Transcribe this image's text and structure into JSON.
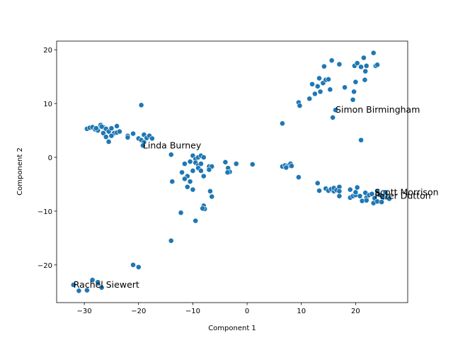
{
  "chart_data": {
    "type": "scatter",
    "xlabel": "Component 1",
    "ylabel": "Component 2",
    "color": "#1f77b4",
    "x": [
      -29.5,
      -29,
      -28.5,
      -28,
      -27.5,
      -27,
      -26.5,
      -26,
      -25.5,
      -25,
      -24.5,
      -24,
      -24,
      -23.5,
      -26.5,
      -26,
      -25.5,
      -25,
      -22,
      -22,
      -21,
      -20,
      -19.5,
      -19,
      -19,
      -18.5,
      -18,
      -17.5,
      -19.2,
      -19.5,
      -27.8,
      -26.8,
      -14,
      -10,
      -9.5,
      -9,
      -8.5,
      -8,
      -10.5,
      -9.5,
      -9,
      -8.5,
      -11.5,
      -12,
      -11,
      -11.5,
      -10.5,
      -11,
      -10,
      -10,
      -9,
      -8.5,
      -8,
      -7,
      -6.5,
      -7,
      -13.8,
      -6.8,
      -6.5,
      -8,
      -7.8,
      -8.2,
      -12.2,
      -9.5,
      -14,
      -21,
      -20,
      -4,
      -3.5,
      -3.2,
      -3.6,
      -2,
      1,
      6.5,
      7,
      7.5,
      8,
      8.2,
      7.2,
      9.5,
      6.5,
      9.5,
      9.7,
      11.5,
      12,
      12.5,
      13,
      13.3,
      13.5,
      14,
      14.2,
      14.5,
      15,
      15.3,
      15.6,
      15.8,
      16.3,
      17,
      18,
      19.5,
      19.7,
      19.8,
      20,
      20.3,
      21,
      21.5,
      21.7,
      21.8,
      22,
      23.3,
      23.7,
      24,
      21,
      13,
      13.3,
      14.5,
      15,
      15.5,
      16,
      16,
      16.5,
      17,
      17,
      17,
      19,
      19,
      19.5,
      20,
      20,
      20.3,
      20.8,
      21.2,
      21.8,
      22,
      22,
      22.5,
      23,
      23.3,
      23.5,
      24,
      24,
      24.5,
      25,
      25.5,
      25.8,
      26.2,
      24.8,
      -32,
      -31,
      -29.5,
      -28.5,
      -27.5,
      -26.8
    ],
    "values": [
      5.3,
      5.5,
      5.6,
      5.2,
      5,
      6,
      5.6,
      5.3,
      4.8,
      5.4,
      4.5,
      5.8,
      4.6,
      4.8,
      4.5,
      3.8,
      2.9,
      4,
      4,
      3.7,
      4.4,
      3.5,
      3.2,
      4.2,
      2.8,
      3.6,
      4,
      3.5,
      2.2,
      9.7,
      5.4,
      5.7,
      0.5,
      0.3,
      -0.3,
      0,
      0.3,
      0,
      -0.8,
      -1,
      -1.5,
      -1.2,
      -1.2,
      -2.8,
      -3.5,
      -4,
      -4.5,
      -5.5,
      -6,
      -2.5,
      -2,
      -2.5,
      -3.5,
      -1.7,
      -1.7,
      -2.3,
      -4.5,
      -6.3,
      -7.3,
      -9,
      -9.6,
      -9.5,
      -10.3,
      -11.8,
      -15.5,
      -20,
      -20.4,
      -0.9,
      -2,
      -2.7,
      -2.8,
      -1.2,
      -1.3,
      -1.7,
      -1.5,
      -1.6,
      -1.2,
      -1.6,
      -1.9,
      -3.7,
      6.3,
      10.2,
      9.6,
      10.9,
      13.6,
      11.8,
      13.2,
      14.7,
      12.2,
      13.8,
      16.9,
      14.4,
      14.5,
      12.6,
      18,
      7.4,
      8.8,
      17.3,
      13,
      10.7,
      12.2,
      17,
      14,
      17.5,
      16.8,
      18.5,
      14.4,
      16,
      17,
      19.4,
      17,
      17.2,
      3.2,
      -4.8,
      -6.2,
      -5.8,
      -6.2,
      -5.9,
      -6.3,
      -5.7,
      -6.1,
      -5.5,
      -6.3,
      -7.2,
      -7.5,
      -6,
      -7.2,
      -7,
      -6.5,
      -5.6,
      -7.2,
      -8.1,
      -6.6,
      -7.5,
      -8,
      -7,
      -6.8,
      -8.5,
      -7.6,
      -6.3,
      -8.2,
      -7,
      -7.5,
      -6.5,
      -7.5,
      -7.7,
      -8.3,
      -23.7,
      -24.8,
      -24.7,
      -22.8,
      -23.2,
      -24.2
    ],
    "annotations": [
      {
        "text": "Simon Birmingham",
        "x": 16.3,
        "y": 8.8
      },
      {
        "text": "Linda Burney",
        "x": -19.2,
        "y": 2.2
      },
      {
        "text": "Scott Morrison",
        "x": 23.5,
        "y": -6.5
      },
      {
        "text": "Peter Dutton",
        "x": 23.5,
        "y": -7.2
      },
      {
        "text": "Rachel Siewert",
        "x": -32,
        "y": -23.7
      }
    ],
    "xlim": [
      -35.1,
      29.6
    ],
    "ylim": [
      -27,
      21.6
    ],
    "xticks": [
      {
        "value": -30,
        "label": "−30"
      },
      {
        "value": -20,
        "label": "−20"
      },
      {
        "value": -10,
        "label": "−10"
      },
      0,
      10,
      20
    ],
    "yticks": [
      {
        "value": -20,
        "label": "−20"
      },
      {
        "value": -10,
        "label": "−10"
      },
      0,
      10,
      20
    ]
  }
}
